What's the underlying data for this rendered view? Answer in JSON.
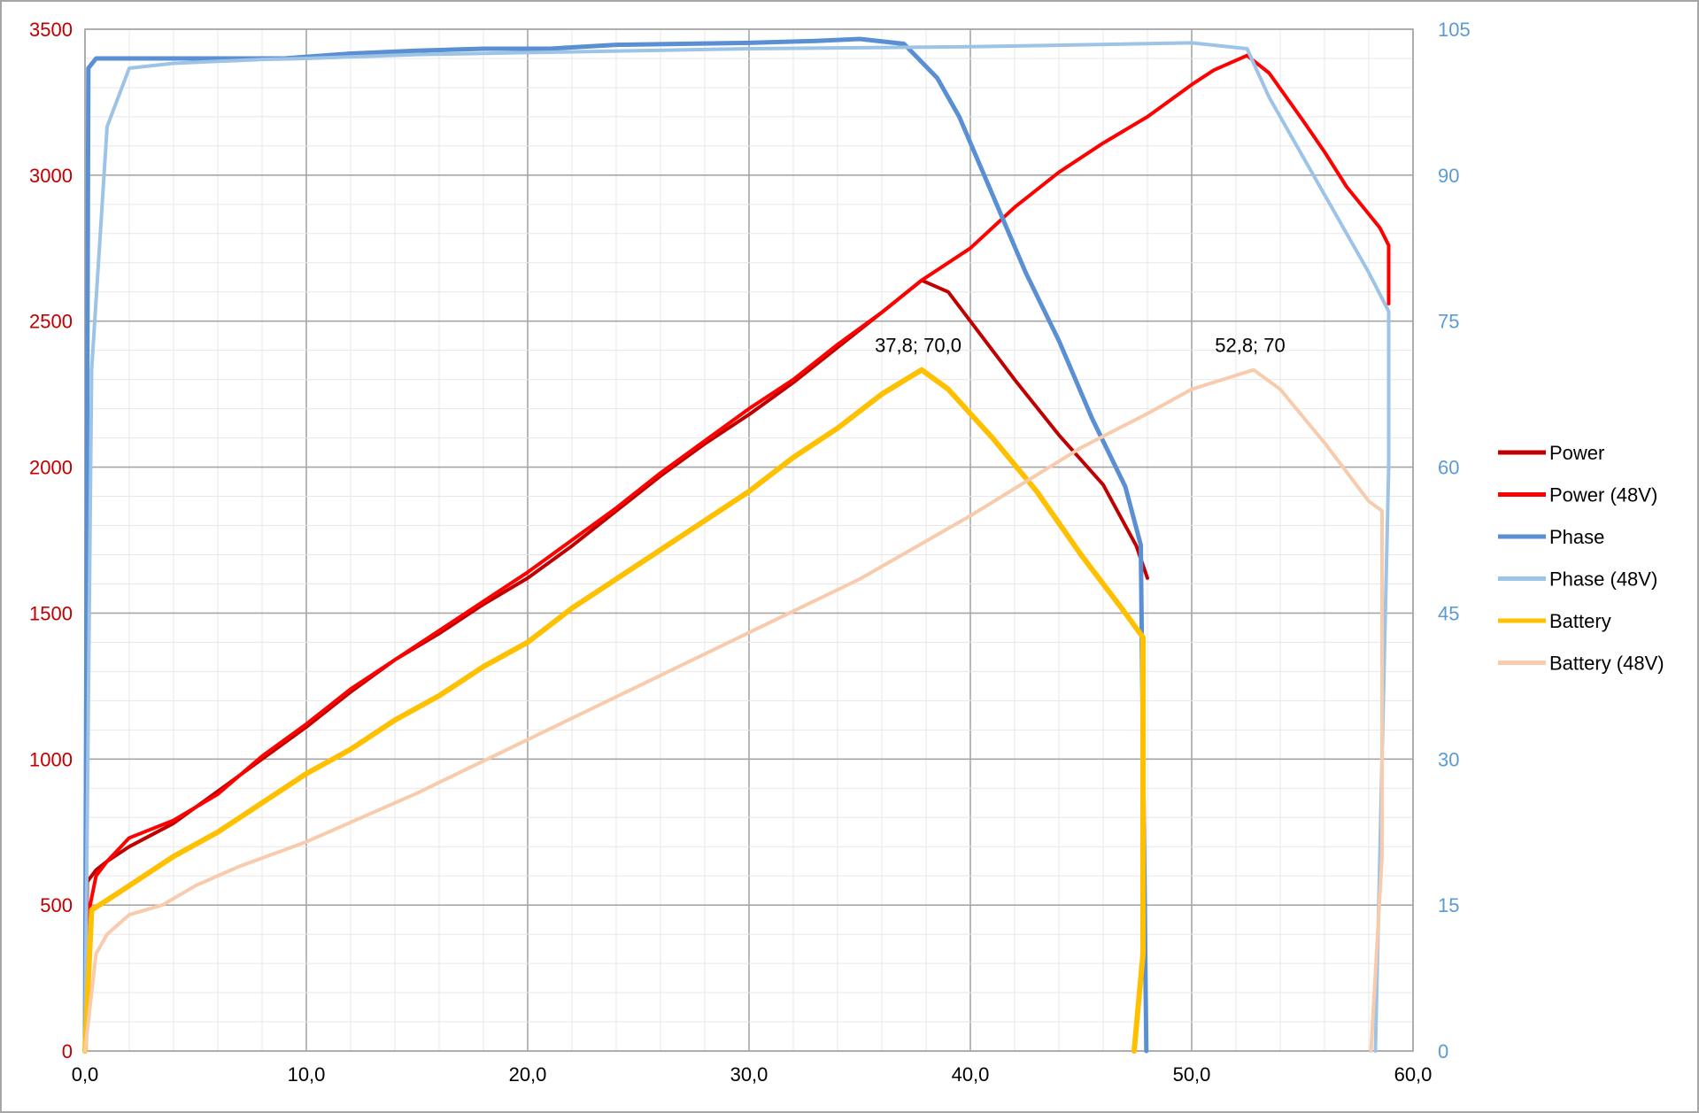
{
  "chart_data": {
    "type": "line",
    "title": "",
    "xlabel": "",
    "ylabel": "",
    "y2label": "",
    "xlim": [
      0,
      60
    ],
    "ylim": [
      0,
      3500
    ],
    "y2lim": [
      0,
      105
    ],
    "grid": true,
    "legend_position": "right",
    "x_ticks": [
      "0,0",
      "10,0",
      "20,0",
      "30,0",
      "40,0",
      "50,0",
      "60,0"
    ],
    "y_ticks": [
      "0",
      "500",
      "1000",
      "1500",
      "2000",
      "2500",
      "3000",
      "3500"
    ],
    "y2_ticks": [
      "0",
      "15",
      "30",
      "45",
      "60",
      "75",
      "90",
      "105"
    ],
    "colors": {
      "left_axis": "#c00000",
      "right_axis": "#5b9bd5"
    },
    "series": [
      {
        "name": "Power",
        "axis": "left",
        "color": "#c00000",
        "width": 4,
        "x": [
          0,
          0.1,
          0.5,
          1,
          2,
          4,
          6,
          8,
          10,
          12,
          14,
          16,
          18,
          20,
          22,
          24,
          26,
          28,
          30,
          32,
          34,
          36,
          37.8,
          39,
          40,
          42,
          44,
          46,
          47.5,
          48
        ],
        "y": [
          0,
          580,
          620,
          650,
          700,
          780,
          890,
          1000,
          1110,
          1230,
          1340,
          1430,
          1530,
          1620,
          1730,
          1850,
          1970,
          2080,
          2180,
          2290,
          2410,
          2530,
          2640,
          2600,
          2500,
          2300,
          2110,
          1940,
          1730,
          1620
        ]
      },
      {
        "name": "Power (48V)",
        "axis": "left",
        "color": "#ff0000",
        "width": 4,
        "x": [
          0,
          0.1,
          0.5,
          1,
          2,
          4,
          6,
          8,
          10,
          12,
          14,
          16,
          18,
          20,
          22,
          24,
          26,
          28,
          30,
          32,
          34,
          36,
          37.8,
          40,
          42,
          44,
          46,
          48,
          50,
          51,
          52.5,
          53.5,
          55,
          56,
          57,
          58.5,
          58.9,
          58.9
        ],
        "y": [
          0,
          450,
          600,
          650,
          730,
          790,
          880,
          1010,
          1120,
          1240,
          1340,
          1440,
          1540,
          1640,
          1750,
          1860,
          1980,
          2090,
          2200,
          2300,
          2420,
          2530,
          2640,
          2750,
          2890,
          3010,
          3110,
          3200,
          3310,
          3360,
          3410,
          3350,
          3190,
          3080,
          2960,
          2820,
          2760,
          2560
        ]
      },
      {
        "name": "Phase",
        "axis": "right",
        "color": "#5b8fd4",
        "width": 5,
        "x": [
          0,
          0.15,
          0.5,
          1,
          3,
          6,
          9,
          12,
          15,
          18,
          21,
          24,
          27,
          30,
          33,
          35,
          37,
          38.5,
          39.5,
          41,
          42.5,
          44,
          45.5,
          47,
          47.7,
          47.9,
          47.95
        ],
        "y": [
          0,
          101,
          102,
          102,
          102,
          102,
          102,
          102.5,
          102.8,
          103,
          103,
          103.4,
          103.5,
          103.6,
          103.8,
          104,
          103.5,
          100,
          96,
          88,
          80,
          73,
          65,
          58,
          52,
          10,
          0
        ]
      },
      {
        "name": "Phase (48V)",
        "axis": "right",
        "color": "#9dc3e6",
        "width": 4,
        "x": [
          0,
          0.3,
          1,
          2,
          4,
          6,
          8,
          10,
          15,
          20,
          25,
          30,
          35,
          40,
          45,
          50,
          52.5,
          53.5,
          55,
          56.5,
          58,
          58.9,
          58.9,
          58.3
        ],
        "y": [
          0,
          70,
          95,
          101,
          101.5,
          101.7,
          101.9,
          102,
          102.4,
          102.6,
          102.8,
          103,
          103.1,
          103.2,
          103.4,
          103.6,
          103,
          98,
          92,
          86,
          80,
          76,
          60,
          0
        ]
      },
      {
        "name": "Battery",
        "axis": "right",
        "color": "#ffc000",
        "width": 6,
        "x": [
          0,
          0.3,
          1,
          2,
          4,
          6,
          8,
          10,
          12,
          14,
          16,
          18,
          20,
          22,
          24,
          26,
          28,
          30,
          32,
          34,
          36,
          37.8,
          39,
          41,
          43,
          45,
          47,
          47.8,
          47.8,
          47.4
        ],
        "y": [
          0,
          14.5,
          15.5,
          17,
          20,
          22.5,
          25.5,
          28.5,
          31,
          34,
          36.5,
          39.5,
          42,
          45.5,
          48.5,
          51.5,
          54.5,
          57.5,
          61,
          64,
          67.5,
          70,
          68,
          63,
          57.5,
          51,
          45,
          42.5,
          10,
          0
        ]
      },
      {
        "name": "Battery (48V)",
        "axis": "right",
        "color": "#f8cbad",
        "width": 4,
        "x": [
          0,
          0.5,
          1,
          2,
          3.5,
          5,
          7,
          10,
          15,
          20,
          25,
          30,
          35,
          40,
          45,
          48,
          50,
          52.8,
          54,
          56,
          58,
          58.6,
          58.6,
          58.1
        ],
        "y": [
          0,
          10,
          12,
          14,
          15,
          17,
          19,
          21.5,
          26.5,
          32,
          37.5,
          43,
          48.5,
          55,
          62,
          65.5,
          68,
          70,
          68,
          62.5,
          56.5,
          55.5,
          20,
          0
        ]
      }
    ],
    "annotations": [
      {
        "text": "37,8; 70,0",
        "x": 37.8,
        "y": 70.0,
        "axis": "right"
      },
      {
        "text": "52,8; 70",
        "x": 52.8,
        "y": 70,
        "axis": "right"
      }
    ]
  }
}
